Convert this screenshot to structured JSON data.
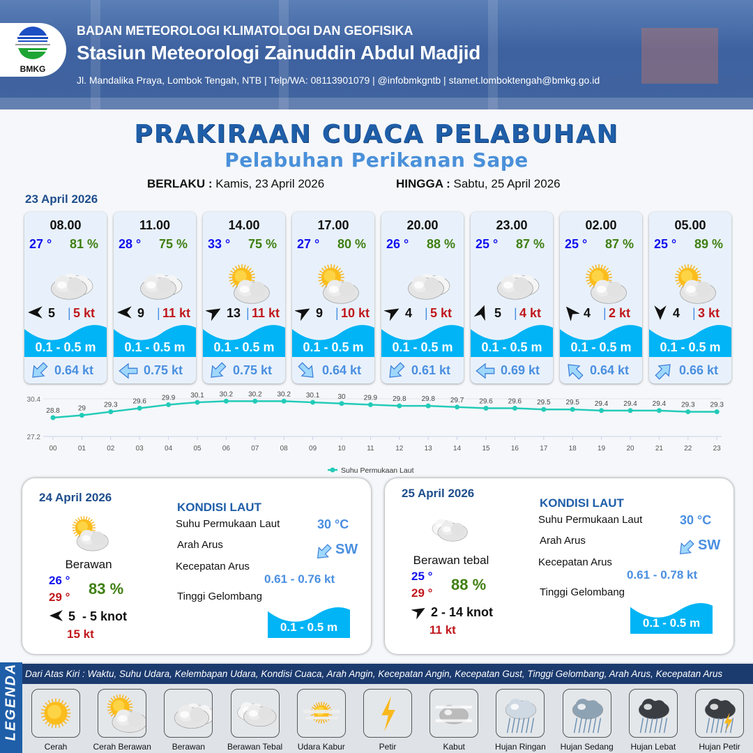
{
  "header": {
    "agency": "BADAN METEOROLOGI KLIMATOLOGI DAN GEOFISIKA",
    "station": "Stasiun Meteorologi Zainuddin Abdul Madjid",
    "contact": "Jl. Mandalika Praya, Lombok Tengah, NTB | Telp/WA: 08113901079 | @infobmkgntb | stamet.lomboktengah@bmkg.go.id",
    "logo_text": "BMKG"
  },
  "title": "PRAKIRAAN CUACA PELABUHAN",
  "subtitle": "Pelabuhan Perikanan Sape",
  "validity": {
    "from_label": "BERLAKU :",
    "from": "Kamis, 23 April 2026",
    "to_label": "HINGGA :",
    "to": "Sabtu, 25 April 2026"
  },
  "day1": {
    "date": "23 April 2026",
    "cards": [
      {
        "time": "08.00",
        "temp": "27 °",
        "rh": "81 %",
        "icon": "berawan",
        "wind_dir_deg": 270,
        "wind": "5",
        "gust": "5 kt",
        "wave": "0.1 - 0.5 m",
        "current_dir_deg": 225,
        "current": "0.64 kt"
      },
      {
        "time": "11.00",
        "temp": "28 °",
        "rh": "75 %",
        "icon": "berawan",
        "wind_dir_deg": 270,
        "wind": "9",
        "gust": "11 kt",
        "wave": "0.1 - 0.5 m",
        "current_dir_deg": 270,
        "current": "0.75 kt"
      },
      {
        "time": "14.00",
        "temp": "33 °",
        "rh": "75 %",
        "icon": "cerah-berawan",
        "wind_dir_deg": 60,
        "wind": "13",
        "gust": "11 kt",
        "wave": "0.1 - 0.5 m",
        "current_dir_deg": 225,
        "current": "0.75 kt"
      },
      {
        "time": "17.00",
        "temp": "27 °",
        "rh": "80 %",
        "icon": "cerah-berawan",
        "wind_dir_deg": 60,
        "wind": "9",
        "gust": "10 kt",
        "wave": "0.1 - 0.5 m",
        "current_dir_deg": 135,
        "current": "0.64 kt"
      },
      {
        "time": "20.00",
        "temp": "26 °",
        "rh": "88 %",
        "icon": "berawan",
        "wind_dir_deg": 60,
        "wind": "4",
        "gust": "5 kt",
        "wave": "0.1 - 0.5 m",
        "current_dir_deg": 225,
        "current": "0.61 kt"
      },
      {
        "time": "23.00",
        "temp": "25 °",
        "rh": "87 %",
        "icon": "berawan",
        "wind_dir_deg": 20,
        "wind": "5",
        "gust": "4 kt",
        "wave": "0.1 - 0.5 m",
        "current_dir_deg": 270,
        "current": "0.69 kt"
      },
      {
        "time": "02.00",
        "temp": "25 °",
        "rh": "87 %",
        "icon": "cerah-berawan",
        "wind_dir_deg": 320,
        "wind": "4",
        "gust": "2 kt",
        "wave": "0.1 - 0.5 m",
        "current_dir_deg": 315,
        "current": "0.64 kt"
      },
      {
        "time": "05.00",
        "temp": "25 °",
        "rh": "89 %",
        "icon": "cerah-berawan",
        "wind_dir_deg": 180,
        "wind": "4",
        "gust": "3 kt",
        "wave": "0.1 - 0.5 m",
        "current_dir_deg": 45,
        "current": "0.66 kt"
      }
    ]
  },
  "chart_data": {
    "type": "line",
    "categories": [
      "00",
      "01",
      "02",
      "03",
      "04",
      "05",
      "06",
      "07",
      "08",
      "09",
      "10",
      "11",
      "12",
      "13",
      "14",
      "15",
      "16",
      "17",
      "18",
      "19",
      "20",
      "21",
      "22",
      "23"
    ],
    "series": [
      {
        "name": "Suhu Permukaan Laut",
        "values": [
          28.8,
          29.0,
          29.3,
          29.6,
          29.9,
          30.1,
          30.2,
          30.2,
          30.2,
          30.1,
          30.0,
          29.9,
          29.8,
          29.8,
          29.7,
          29.6,
          29.6,
          29.5,
          29.5,
          29.4,
          29.4,
          29.4,
          29.3,
          29.3
        ]
      }
    ],
    "yticks": [
      "27.2",
      "30.4"
    ],
    "ylim": [
      27.2,
      30.4
    ],
    "legend": "bottom",
    "color": "#22cbb8"
  },
  "day2": {
    "date": "24 April 2026",
    "condition": "Berawan",
    "icon": "cerah-berawan",
    "tmin": "26 °",
    "tmax": "29 °",
    "rh": "83 %",
    "wind_dir_deg": 270,
    "wind": "5  - 5 knot",
    "gust": "15 kt",
    "sea": {
      "heading": "KONDISI LAUT",
      "sst_label": "Suhu Permukaan Laut",
      "sst": "30 °C",
      "dir_label": "Arah Arus",
      "dir": "SW",
      "dir_deg": 225,
      "speed_label": "Kecepatan Arus",
      "speed": "0.61 - 0.76 kt",
      "wave_label": "Tinggi Gelombang",
      "wave": "0.1 - 0.5 m"
    }
  },
  "day3": {
    "date": "25 April 2026",
    "condition": "Berawan tebal",
    "icon": "berawan-tebal",
    "tmin": "25 °",
    "tmax": "29 °",
    "rh": "88 %",
    "wind_dir_deg": 60,
    "wind": "2 - 14 knot",
    "gust": "11 kt",
    "sea": {
      "heading": "KONDISI LAUT",
      "sst_label": "Suhu Permukaan Laut",
      "sst": "30 °C",
      "dir_label": "Arah Arus",
      "dir": "SW",
      "dir_deg": 225,
      "speed_label": "Kecepatan Arus",
      "speed": "0.61 - 0.78 kt",
      "wave_label": "Tinggi Gelombang",
      "wave": "0.1 - 0.5 m"
    }
  },
  "legend": {
    "title": "LEGENDA",
    "description": "Dari Atas Kiri : Waktu, Suhu Udara, Kelembapan Udara, Kondisi Cuaca, Arah Angin, Kecepatan Angin, Kecepatan Gust, Tinggi Gelombang, Arah Arus, Kecepatan Arus",
    "items": [
      {
        "label": "Cerah",
        "icon": "cerah"
      },
      {
        "label": "Cerah Berawan",
        "icon": "cerah-berawan"
      },
      {
        "label": "Berawan",
        "icon": "berawan"
      },
      {
        "label": "Berawan Tebal",
        "icon": "berawan-tebal"
      },
      {
        "label": "Udara Kabur",
        "icon": "udara-kabur"
      },
      {
        "label": "Petir",
        "icon": "petir"
      },
      {
        "label": "Kabut",
        "icon": "kabut"
      },
      {
        "label": "Hujan Ringan",
        "icon": "hujan-ringan"
      },
      {
        "label": "Hujan Sedang",
        "icon": "hujan-sedang"
      },
      {
        "label": "Hujan Lebat",
        "icon": "hujan-lebat"
      },
      {
        "label": "Hujan Petir",
        "icon": "hujan-petir"
      }
    ]
  },
  "colors": {
    "wave": "#00b4f5",
    "temp": "#1010ee",
    "rh": "#3f7f12",
    "gust": "#c0181c",
    "current": "#4a8fe0"
  }
}
